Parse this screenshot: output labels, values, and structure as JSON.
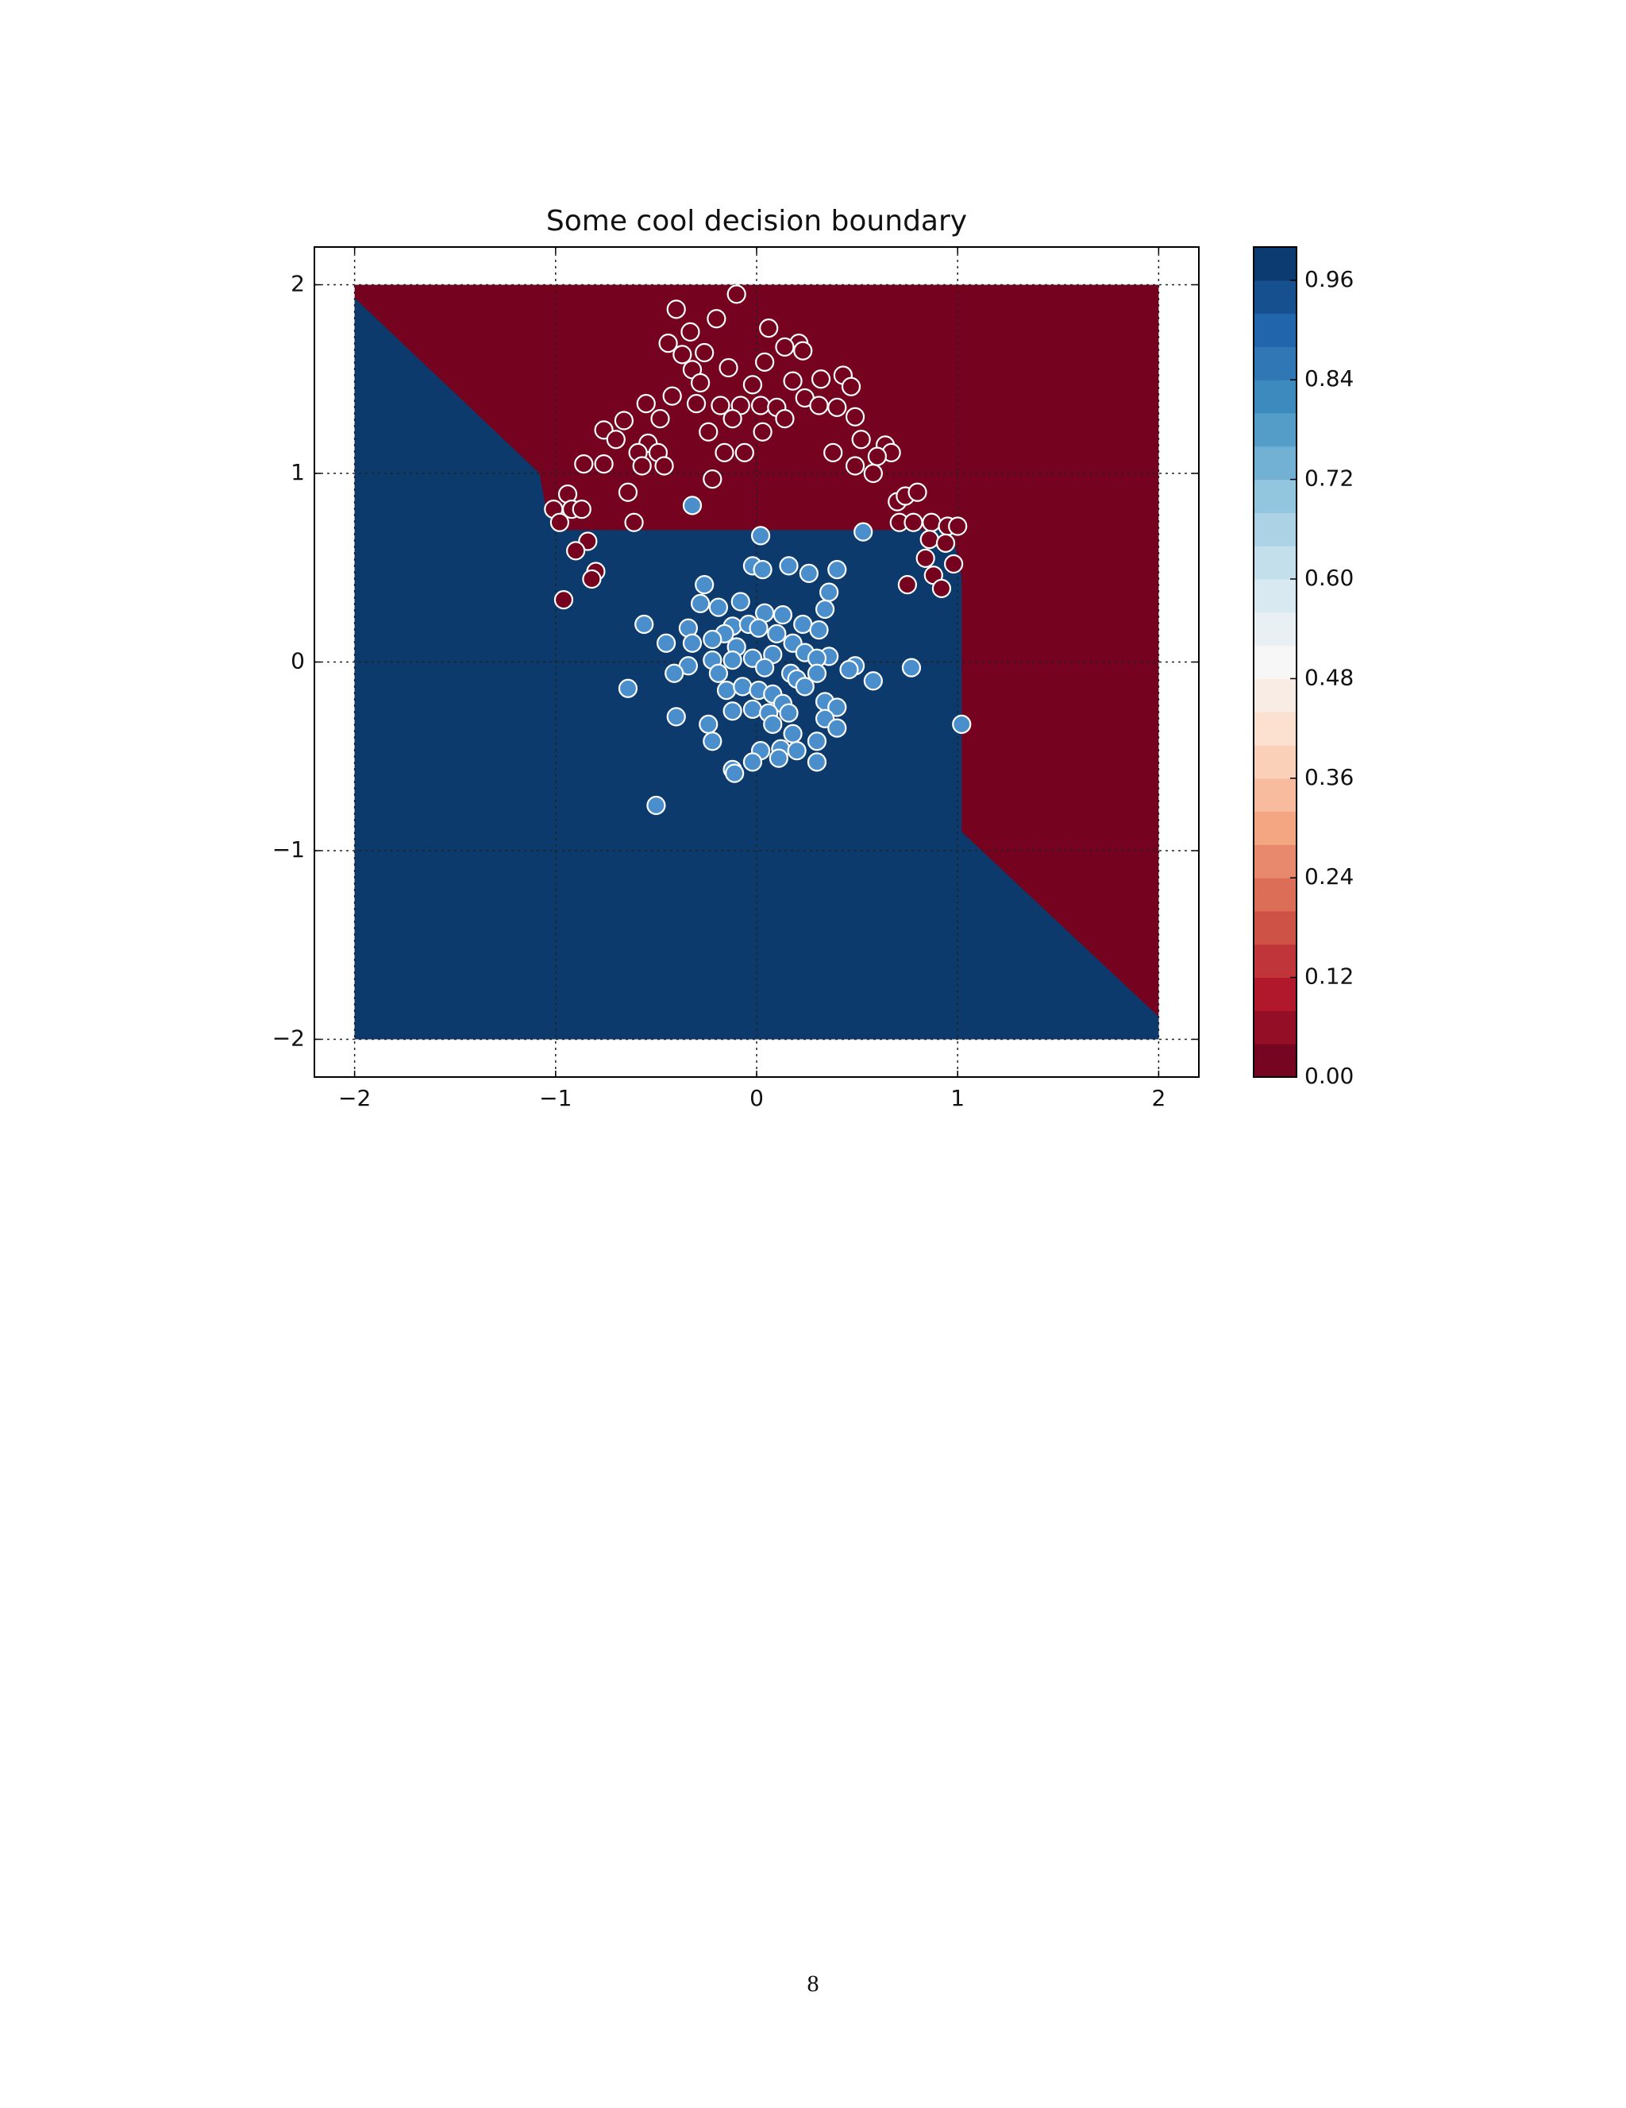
{
  "chart_data": {
    "type": "scatter",
    "title": "Some cool decision boundary",
    "xlim": [
      -2.2,
      2.2
    ],
    "ylim": [
      -2.2,
      2.2
    ],
    "xticks": [
      {
        "value": -2,
        "label": "−2"
      },
      {
        "value": -1,
        "label": "−1"
      },
      0,
      1,
      2
    ],
    "yticks": [
      {
        "value": -2,
        "label": "−2"
      },
      {
        "value": -1,
        "label": "−1"
      },
      0,
      1,
      2
    ],
    "grid": true,
    "regions": [
      {
        "color": "#75031f",
        "x": [
          -2,
          2,
          2,
          -2
        ],
        "y": [
          2,
          2,
          -2,
          -2
        ]
      },
      {
        "color": "#0c3a6c",
        "x": [
          -2,
          -1.08,
          -1.05,
          -0.95,
          0.97,
          1.02,
          1.02,
          2,
          2,
          -2
        ],
        "y": [
          1.93,
          1.0,
          0.82,
          0.7,
          0.7,
          0.45,
          -0.9,
          -1.88,
          -2,
          -2
        ]
      }
    ],
    "series": [
      {
        "color": "#75031f",
        "x": [
          -0.1,
          -0.4,
          -0.2,
          -0.33,
          0.06,
          -0.44,
          -0.37,
          -0.26,
          0.21,
          0.23,
          0.14,
          -0.32,
          -0.14,
          0.04,
          -0.28,
          -0.02,
          0.18,
          0.32,
          0.43,
          0.47,
          -0.42,
          -0.3,
          -0.18,
          -0.08,
          0.02,
          0.1,
          0.24,
          0.31,
          0.4,
          -0.55,
          -0.48,
          -0.66,
          -0.76,
          -0.7,
          -0.54,
          -0.24,
          -0.12,
          0.03,
          0.14,
          0.49,
          0.52,
          0.64,
          0.67,
          0.38,
          0.49,
          0.58,
          0.6,
          -0.16,
          -0.06,
          -0.59,
          -0.49,
          -0.46,
          -0.57,
          -0.76,
          -0.86,
          -0.22,
          -0.64,
          -0.94,
          -1.01,
          -0.92,
          -0.87,
          -0.98,
          -0.61,
          0.7,
          0.74,
          0.8,
          0.71,
          0.78,
          0.87,
          0.95,
          1.0,
          0.86,
          0.94,
          -0.84,
          -0.9,
          -0.8,
          -0.82,
          -0.96,
          0.84,
          0.98,
          0.88,
          0.75,
          0.92
        ],
        "values": [
          1.95,
          1.87,
          1.82,
          1.75,
          1.77,
          1.69,
          1.63,
          1.64,
          1.69,
          1.65,
          1.67,
          1.55,
          1.56,
          1.59,
          1.48,
          1.47,
          1.49,
          1.5,
          1.52,
          1.46,
          1.41,
          1.37,
          1.36,
          1.36,
          1.36,
          1.35,
          1.4,
          1.36,
          1.35,
          1.37,
          1.29,
          1.28,
          1.23,
          1.18,
          1.16,
          1.22,
          1.29,
          1.22,
          1.29,
          1.3,
          1.18,
          1.15,
          1.11,
          1.11,
          1.04,
          1.0,
          1.09,
          1.11,
          1.11,
          1.11,
          1.11,
          1.04,
          1.04,
          1.05,
          1.05,
          0.97,
          0.9,
          0.89,
          0.81,
          0.81,
          0.81,
          0.74,
          0.74,
          0.85,
          0.88,
          0.9,
          0.74,
          0.74,
          0.74,
          0.72,
          0.72,
          0.65,
          0.63,
          0.64,
          0.59,
          0.48,
          0.44,
          0.33,
          0.55,
          0.52,
          0.46,
          0.41,
          0.39
        ]
      },
      {
        "color": "#4a8fcb",
        "x": [
          -0.32,
          0.02,
          0.53,
          -0.02,
          0.16,
          0.26,
          0.4,
          0.03,
          -0.26,
          0.36,
          -0.08,
          -0.28,
          -0.19,
          0.34,
          0.04,
          0.13,
          -0.56,
          -0.34,
          -0.12,
          -0.04,
          0.23,
          0.31,
          0.1,
          0.01,
          -0.16,
          -0.22,
          -0.45,
          -0.32,
          -0.1,
          0.18,
          0.24,
          -0.02,
          0.08,
          0.36,
          0.3,
          -0.22,
          -0.12,
          -0.34,
          0.49,
          0.77,
          -0.41,
          -0.19,
          0.04,
          0.17,
          0.3,
          0.46,
          0.2,
          0.58,
          -0.64,
          -0.15,
          -0.07,
          0.01,
          0.08,
          0.24,
          0.13,
          0.34,
          0.4,
          -0.02,
          -0.12,
          0.06,
          0.16,
          -0.4,
          0.34,
          -0.24,
          0.08,
          0.4,
          1.02,
          0.18,
          -0.22,
          0.3,
          0.02,
          0.12,
          0.2,
          0.11,
          -0.02,
          0.3,
          -0.12,
          -0.11,
          -0.5
        ],
        "values": [
          0.83,
          0.67,
          0.69,
          0.51,
          0.51,
          0.47,
          0.49,
          0.49,
          0.41,
          0.37,
          0.32,
          0.31,
          0.29,
          0.28,
          0.26,
          0.25,
          0.2,
          0.18,
          0.19,
          0.2,
          0.2,
          0.17,
          0.15,
          0.18,
          0.15,
          0.12,
          0.1,
          0.1,
          0.08,
          0.1,
          0.05,
          0.02,
          0.04,
          0.03,
          0.02,
          0.01,
          0.01,
          -0.02,
          -0.02,
          -0.03,
          -0.06,
          -0.06,
          -0.03,
          -0.06,
          -0.06,
          -0.04,
          -0.09,
          -0.1,
          -0.14,
          -0.15,
          -0.13,
          -0.15,
          -0.17,
          -0.13,
          -0.22,
          -0.21,
          -0.24,
          -0.25,
          -0.26,
          -0.27,
          -0.27,
          -0.29,
          -0.3,
          -0.33,
          -0.33,
          -0.35,
          -0.33,
          -0.38,
          -0.42,
          -0.42,
          -0.47,
          -0.46,
          -0.47,
          -0.51,
          -0.53,
          -0.53,
          -0.57,
          -0.59,
          -0.76
        ]
      }
    ],
    "colorbar": {
      "colormap": "RdBu",
      "lim": [
        0,
        1
      ],
      "levels": [
        0,
        0.04,
        0.08,
        0.12,
        0.16,
        0.2,
        0.24,
        0.28,
        0.32,
        0.36,
        0.4,
        0.44,
        0.48,
        0.52,
        0.56,
        0.6,
        0.64,
        0.68,
        0.72,
        0.76,
        0.8,
        0.84,
        0.88,
        0.92,
        0.96,
        1
      ],
      "ticks": [
        {
          "value": 0,
          "label": "0.00"
        },
        {
          "value": 0.12,
          "label": "0.12"
        },
        {
          "value": 0.24,
          "label": "0.24"
        },
        {
          "value": 0.36,
          "label": "0.36"
        },
        {
          "value": 0.48,
          "label": "0.48"
        },
        {
          "value": 0.6,
          "label": "0.60"
        },
        {
          "value": 0.72,
          "label": "0.72"
        },
        {
          "value": 0.84,
          "label": "0.84"
        },
        {
          "value": 0.96,
          "label": "0.96"
        }
      ]
    }
  },
  "page": {
    "number": "8"
  }
}
